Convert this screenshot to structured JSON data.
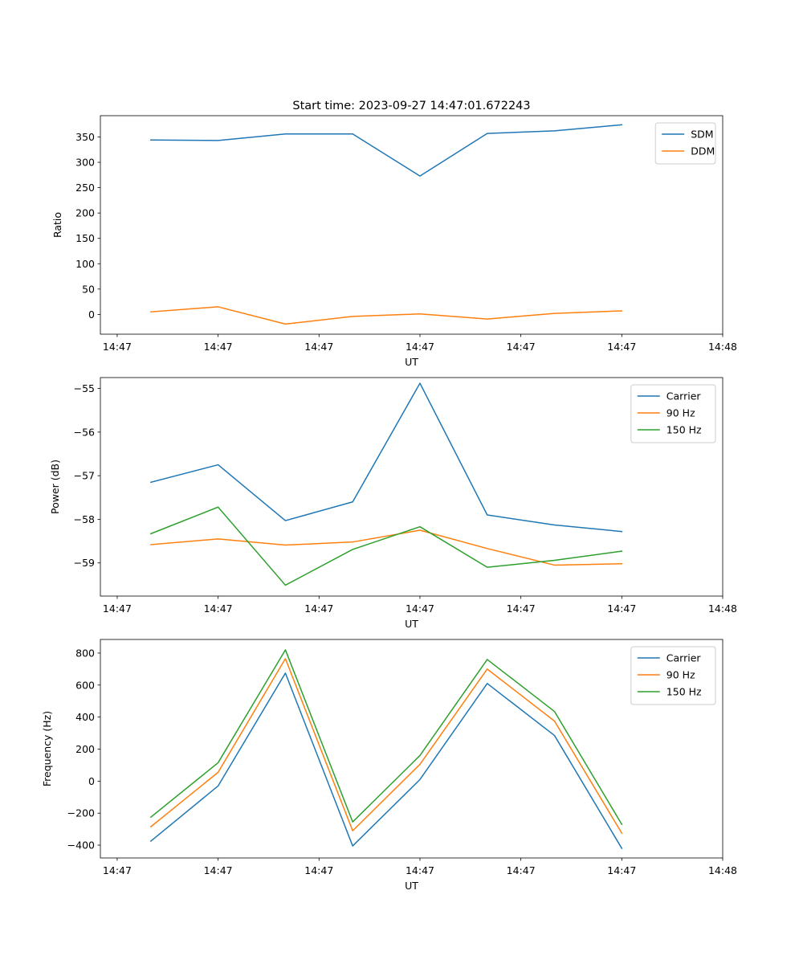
{
  "chart_data": [
    {
      "type": "line",
      "title": "Start time: 2023-09-27 14:47:01.672243",
      "xlabel": "UT",
      "ylabel": "Ratio",
      "x": [
        1,
        2,
        3,
        4,
        5,
        6,
        7,
        8
      ],
      "xlim": [
        0.25,
        9.5
      ],
      "xticks": [
        0.5,
        2,
        3.5,
        5,
        6.5,
        8,
        9.5
      ],
      "xtick_labels": [
        "14:47",
        "14:47",
        "14:47",
        "14:47",
        "14:47",
        "14:47",
        "14:48"
      ],
      "ylim": [
        -39,
        392
      ],
      "yticks": [
        0,
        50,
        100,
        150,
        200,
        250,
        300,
        350
      ],
      "legend": "upper right",
      "series": [
        {
          "name": "SDM",
          "color": "#1f77b4",
          "values": [
            344,
            343,
            356,
            356,
            273,
            357,
            362,
            374
          ]
        },
        {
          "name": "DDM",
          "color": "#ff7f0e",
          "values": [
            5,
            15,
            -19,
            -4,
            1,
            -9,
            2,
            7
          ]
        }
      ]
    },
    {
      "type": "line",
      "title": "",
      "xlabel": "UT",
      "ylabel": "Power (dB)",
      "x": [
        1,
        2,
        3,
        4,
        5,
        6,
        7,
        8
      ],
      "xlim": [
        0.25,
        9.5
      ],
      "xticks": [
        0.5,
        2,
        3.5,
        5,
        6.5,
        8,
        9.5
      ],
      "xtick_labels": [
        "14:47",
        "14:47",
        "14:47",
        "14:47",
        "14:47",
        "14:47",
        "14:48"
      ],
      "ylim": [
        -59.76,
        -54.75
      ],
      "yticks": [
        -59,
        -58,
        -57,
        -56,
        -55
      ],
      "legend": "upper right",
      "series": [
        {
          "name": "Carrier",
          "color": "#1f77b4",
          "values": [
            -57.15,
            -56.75,
            -58.03,
            -57.6,
            -54.88,
            -57.9,
            -58.13,
            -58.28
          ]
        },
        {
          "name": "90 Hz",
          "color": "#ff7f0e",
          "values": [
            -58.58,
            -58.45,
            -58.59,
            -58.52,
            -58.25,
            -58.67,
            -59.05,
            -59.02
          ]
        },
        {
          "name": "150 Hz",
          "color": "#2ca02c",
          "values": [
            -58.33,
            -57.72,
            -59.51,
            -58.69,
            -58.17,
            -59.1,
            -58.94,
            -58.73
          ]
        }
      ]
    },
    {
      "type": "line",
      "title": "",
      "xlabel": "UT",
      "ylabel": "Frequency (Hz)",
      "x": [
        1,
        2,
        3,
        4,
        5,
        6,
        7,
        8
      ],
      "xlim": [
        0.25,
        9.5
      ],
      "xticks": [
        0.5,
        2,
        3.5,
        5,
        6.5,
        8,
        9.5
      ],
      "xtick_labels": [
        "14:47",
        "14:47",
        "14:47",
        "14:47",
        "14:47",
        "14:47",
        "14:48"
      ],
      "ylim": [
        -480,
        885
      ],
      "yticks": [
        -400,
        -200,
        0,
        200,
        400,
        600,
        800
      ],
      "legend": "upper right",
      "series": [
        {
          "name": "Carrier",
          "color": "#1f77b4",
          "values": [
            -375,
            -30,
            675,
            -405,
            10,
            610,
            285,
            -420
          ]
        },
        {
          "name": "90 Hz",
          "color": "#ff7f0e",
          "values": [
            -285,
            55,
            765,
            -310,
            105,
            700,
            375,
            -325
          ]
        },
        {
          "name": "150 Hz",
          "color": "#2ca02c",
          "values": [
            -225,
            115,
            820,
            -255,
            160,
            760,
            435,
            -270
          ]
        }
      ]
    }
  ]
}
